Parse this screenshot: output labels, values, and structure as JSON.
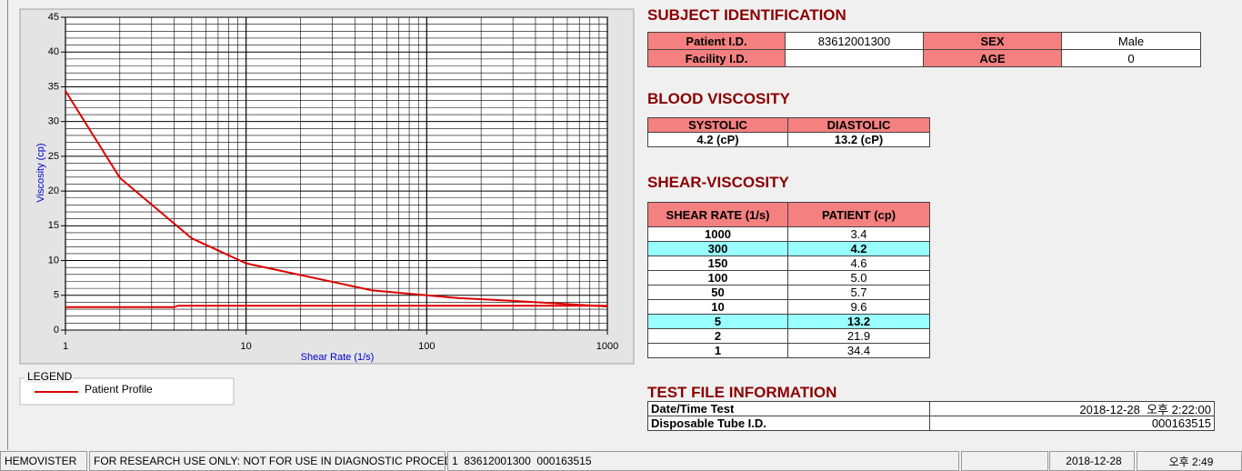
{
  "chart_data": {
    "type": "line",
    "xlabel": "Shear Rate (1/s)",
    "ylabel": "Viscosity (cp)",
    "xscale": "log",
    "xlim": [
      1,
      1000
    ],
    "xticks": [
      1,
      10,
      100,
      1000
    ],
    "xminor": [
      2,
      3,
      4,
      5,
      6,
      7,
      8,
      9,
      20,
      30,
      40,
      50,
      60,
      70,
      80,
      90,
      200,
      300,
      400,
      500,
      600,
      700,
      800,
      900
    ],
    "ylim": [
      0,
      45
    ],
    "yticks": [
      0,
      5,
      10,
      15,
      20,
      25,
      30,
      35,
      40,
      45
    ],
    "yminor": [
      1,
      2,
      3,
      4,
      6,
      7,
      8,
      9,
      11,
      12,
      13,
      14,
      16,
      17,
      18,
      19,
      21,
      22,
      23,
      24,
      26,
      27,
      28,
      29,
      31,
      32,
      33,
      34,
      36,
      37,
      38,
      39,
      41,
      42,
      43,
      44
    ],
    "grid": true,
    "series": [
      {
        "name": "Patient Profile",
        "color": "#dd0000",
        "x": [
          1,
          2,
          5,
          10,
          50,
          100,
          150,
          300,
          1000
        ],
        "values": [
          34.4,
          21.9,
          13.2,
          9.6,
          5.7,
          5.0,
          4.6,
          4.2,
          3.4
        ]
      },
      {
        "color": "#dd0000",
        "x": [
          1,
          4,
          4.2,
          1000
        ],
        "values": [
          3.3,
          3.3,
          3.5,
          3.5
        ]
      }
    ],
    "legend_title": "LEGEND"
  },
  "subject": {
    "title": "SUBJECT IDENTIFICATION",
    "rows": [
      [
        "Patient I.D.",
        "83612001300",
        "SEX",
        "Male"
      ],
      [
        "Facility I.D.",
        null,
        "AGE",
        "0"
      ]
    ]
  },
  "blood": {
    "title": "BLOOD VISCOSITY",
    "header": [
      "SYSTOLIC",
      "DIASTOLIC"
    ],
    "rows": [
      [
        "4.2 (cP)",
        "13.2 (cP)"
      ]
    ]
  },
  "shear": {
    "title": "SHEAR-VISCOSITY",
    "header": [
      "SHEAR RATE (1/s)",
      "PATIENT (cp)"
    ],
    "rows": [
      [
        "1000",
        "3.4"
      ],
      [
        "300",
        "4.2"
      ],
      [
        "150",
        "4.6"
      ],
      [
        "100",
        "5.0"
      ],
      [
        "50",
        "5.7"
      ],
      [
        "10",
        "9.6"
      ],
      [
        "5",
        "13.2"
      ],
      [
        "2",
        "21.9"
      ],
      [
        "1",
        "34.4"
      ]
    ],
    "highlight_rows": [
      1,
      6
    ]
  },
  "test_file": {
    "title": "TEST FILE INFORMATION",
    "rows": [
      [
        "Date/Time Test",
        "2018-12-28  오후 2:22:00"
      ],
      [
        "Disposable Tube I.D.",
        "000163515"
      ]
    ]
  },
  "status_bar": [
    "HEMOVISTER",
    "FOR RESEARCH USE ONLY: NOT FOR USE IN DIAGNOSTIC PROCEDURES",
    "1  83612001300  000163515",
    "2018-12-28",
    "오후 2:49"
  ]
}
